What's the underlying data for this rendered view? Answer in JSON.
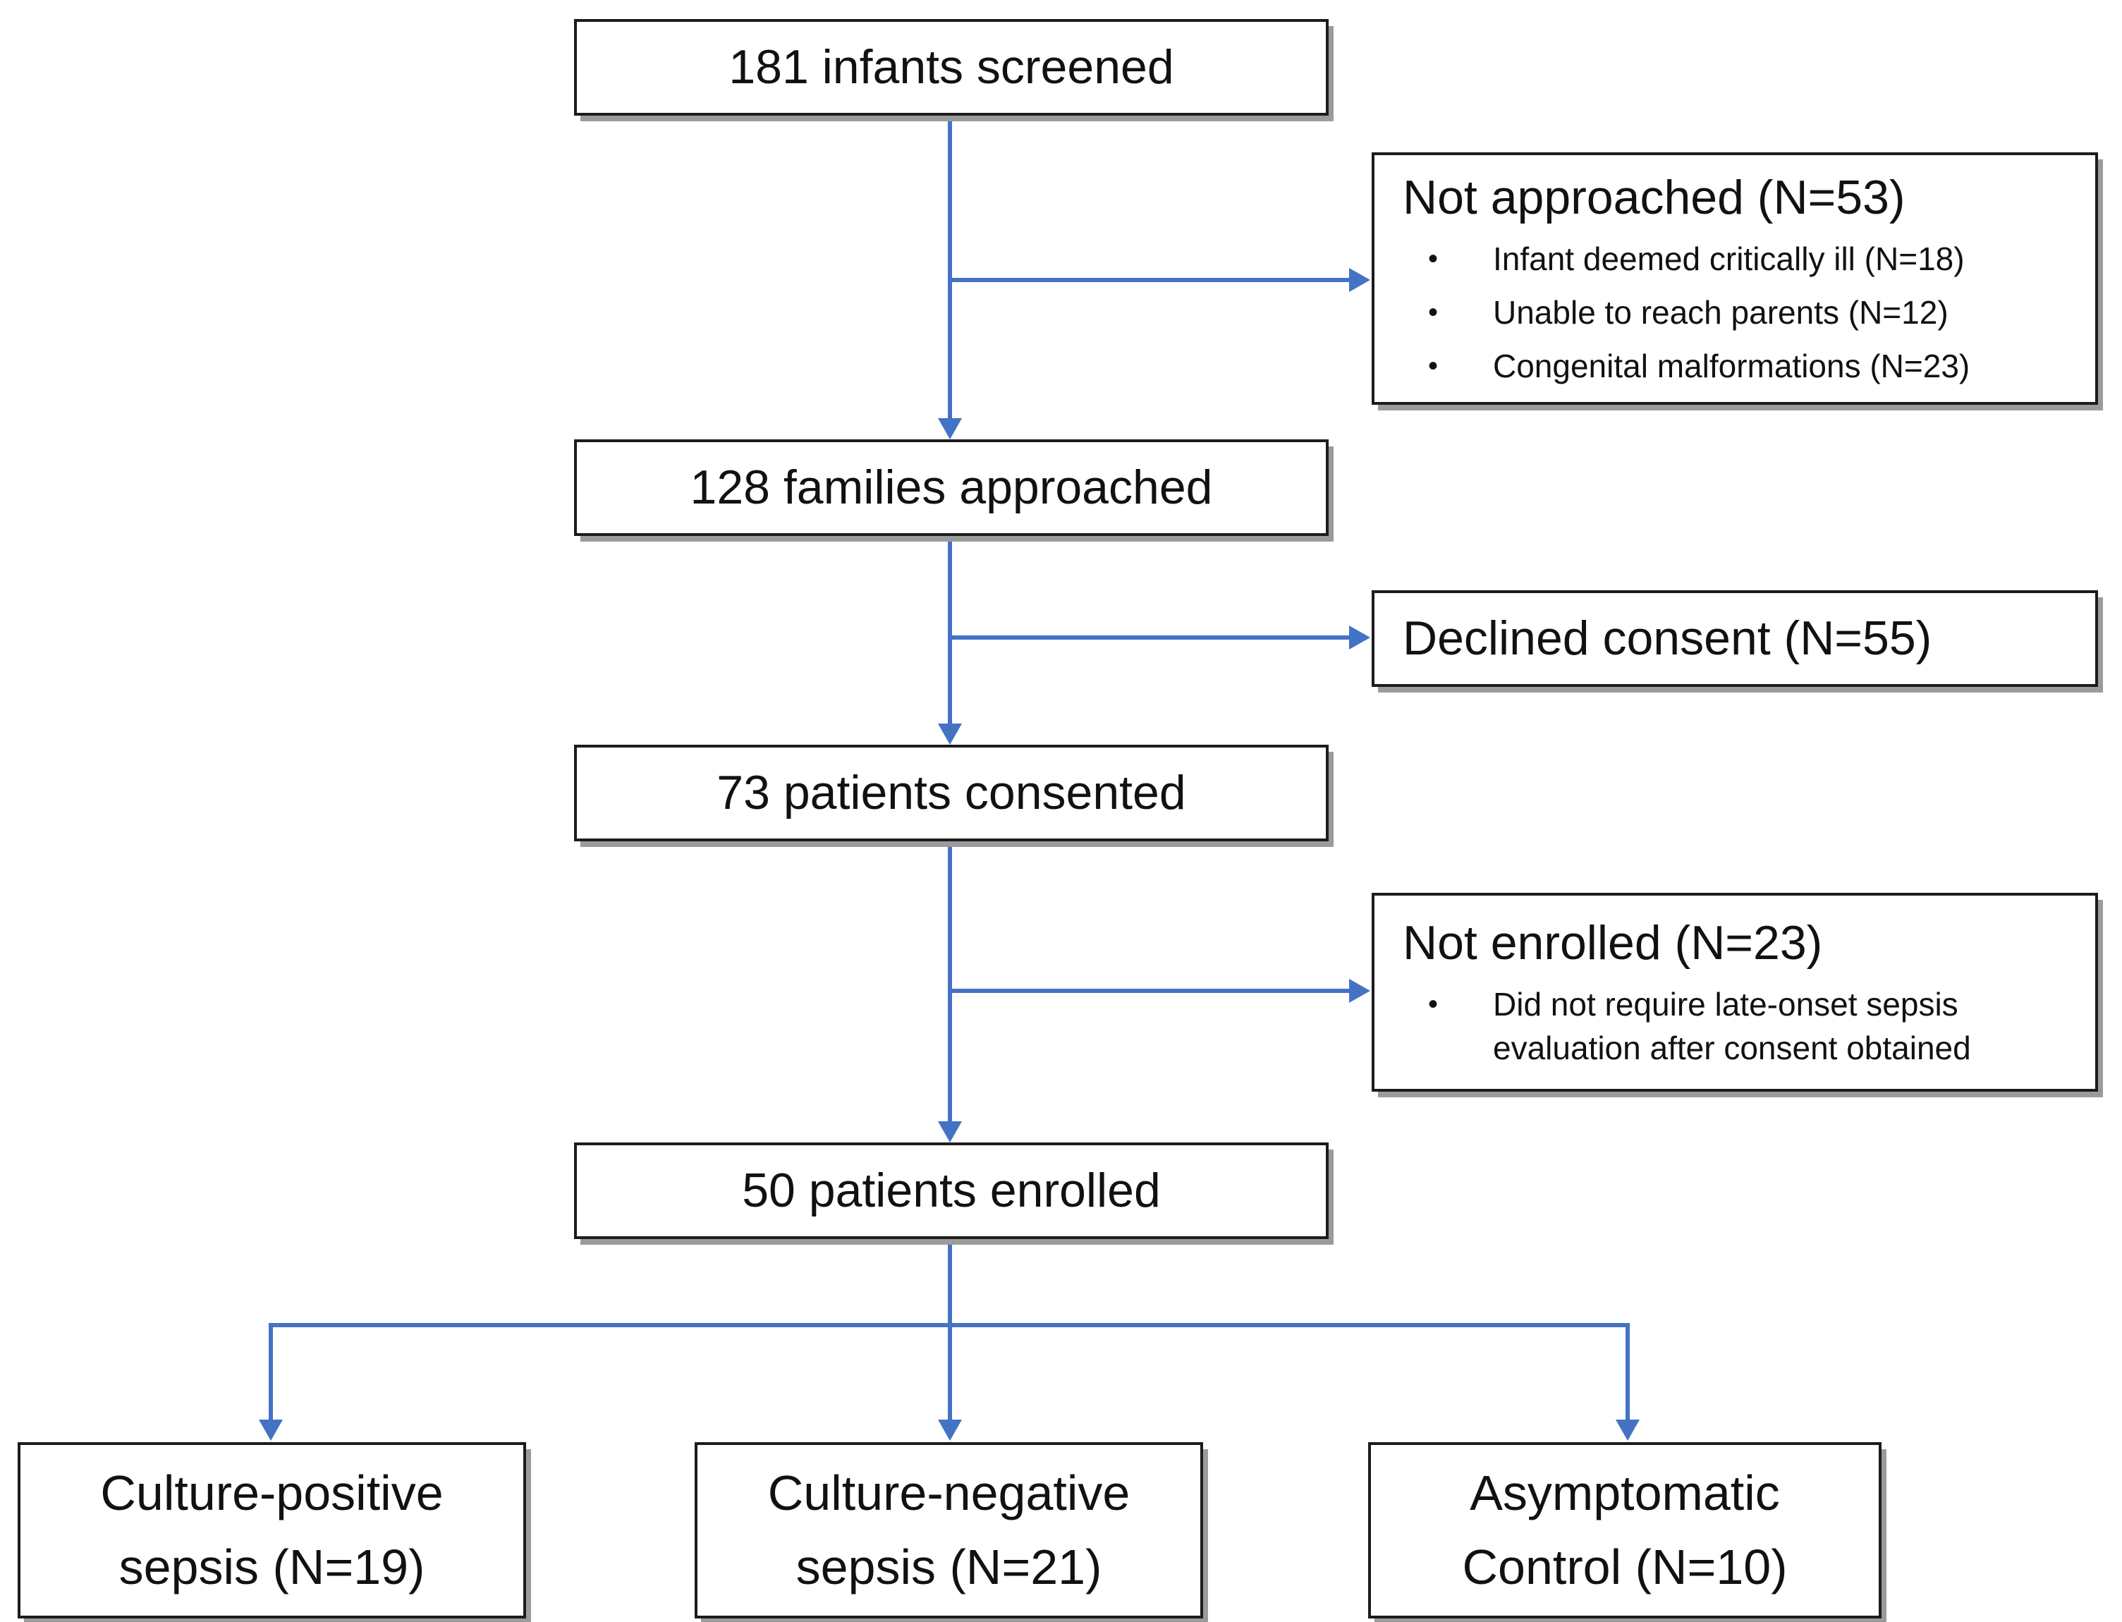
{
  "diagram": {
    "type": "flowchart",
    "accent_color": "#4472C4",
    "box_border_color": "#1c1c1c",
    "bullet_char": "•",
    "nodes": {
      "screened": {
        "label": "181 infants screened"
      },
      "not_approached": {
        "title": "Not approached (N=53)",
        "bullets": [
          "Infant deemed critically ill (N=18)",
          "Unable to reach parents (N=12)",
          "Congenital malformations (N=23)"
        ]
      },
      "approached": {
        "label": "128 families approached"
      },
      "declined": {
        "title": "Declined consent (N=55)"
      },
      "consented": {
        "label": "73 patients consented"
      },
      "not_enrolled": {
        "title": "Not enrolled (N=23)",
        "bullets": [
          "Did not require late-onset sepsis evaluation after consent obtained"
        ]
      },
      "enrolled": {
        "label": "50 patients enrolled"
      },
      "groups": [
        {
          "label": "Culture-positive\nsepsis (N=19)"
        },
        {
          "label": "Culture-negative\nsepsis (N=21)"
        },
        {
          "label": "Asymptomatic\nControl (N=10)"
        }
      ]
    }
  }
}
